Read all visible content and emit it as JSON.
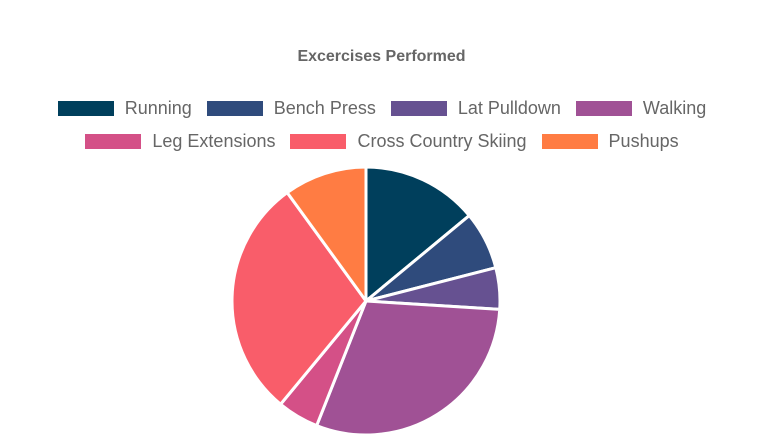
{
  "chart_data": {
    "type": "pie",
    "title": "Excercises Performed",
    "legend_position": "top",
    "categories": [
      "Running",
      "Bench Press",
      "Lat Pulldown",
      "Walking",
      "Leg Extensions",
      "Cross Country Skiing",
      "Pushups"
    ],
    "values": [
      14,
      7,
      5,
      30,
      5,
      29,
      10
    ],
    "colors": [
      "#003f5c",
      "#2f4b7c",
      "#665191",
      "#a05195",
      "#d45087",
      "#f95d6a",
      "#ff7c43"
    ],
    "border_color": "#ffffff"
  }
}
